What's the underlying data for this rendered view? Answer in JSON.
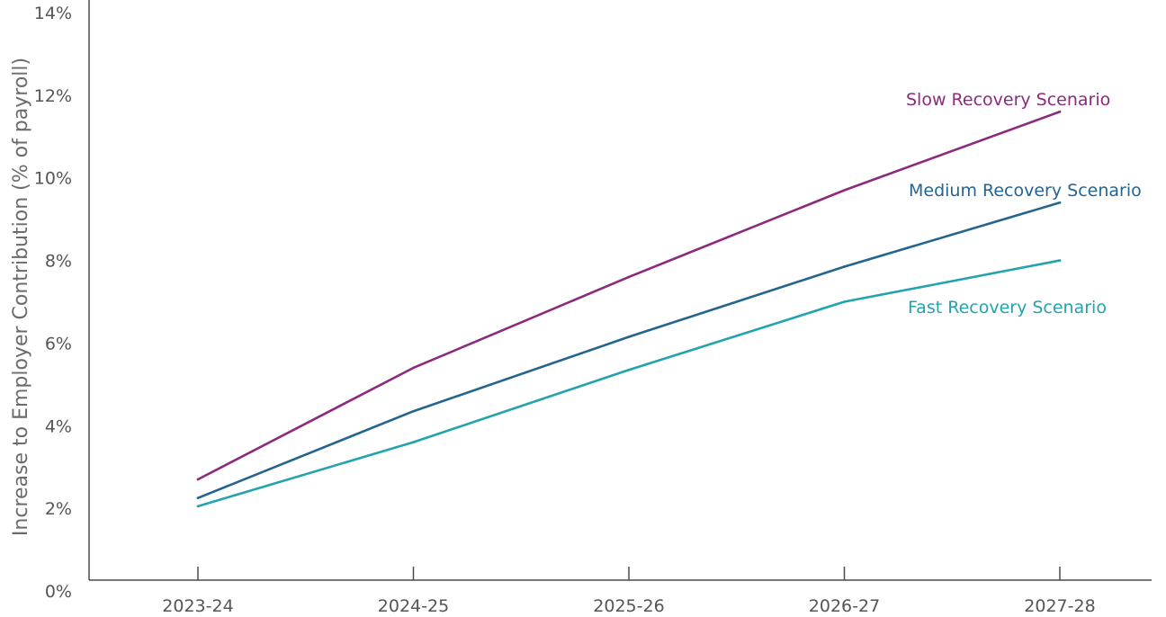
{
  "chart_data": {
    "type": "line",
    "title": "",
    "xlabel": "",
    "ylabel": "Increase to Employer Contribution (% of payroll)",
    "categories": [
      "2023-24",
      "2024-25",
      "2025-26",
      "2026-27",
      "2027-28"
    ],
    "y_ticks": [
      "0%",
      "2%",
      "4%",
      "6%",
      "8%",
      "10%",
      "12%",
      "14%"
    ],
    "ylim": [
      0,
      14
    ],
    "grid": false,
    "legend": "inline labels at line ends",
    "series": [
      {
        "name": "Slow Recovery Scenario",
        "color": "#8c2a7e",
        "values": [
          2.7,
          5.4,
          7.6,
          9.7,
          11.6
        ]
      },
      {
        "name": "Medium Recovery Scenario",
        "color": "#24658f",
        "values": [
          2.25,
          4.35,
          6.15,
          7.85,
          9.4
        ]
      },
      {
        "name": "Fast Recovery Scenario",
        "color": "#23a3ae",
        "values": [
          2.05,
          3.6,
          5.35,
          7.0,
          8.0
        ]
      }
    ]
  }
}
